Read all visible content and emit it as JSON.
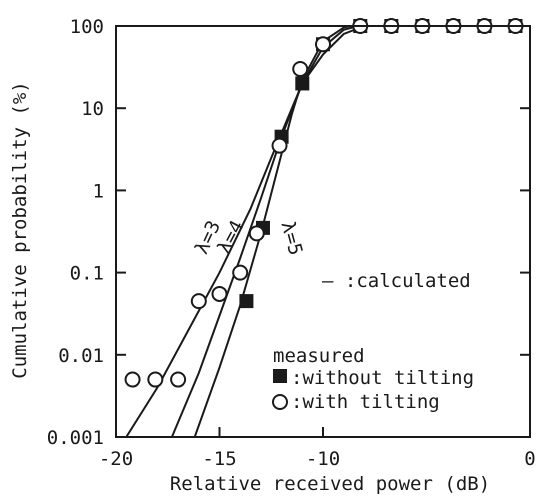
{
  "chart_data": {
    "type": "scatter",
    "xlabel": "Relative received power (dB)",
    "ylabel": "Cumulative probability (%)",
    "xlim": [
      -20,
      0
    ],
    "ylim": [
      0.001,
      100
    ],
    "yscale": "log",
    "grid": false,
    "x_ticks": [
      {
        "value": -20,
        "label": "-20"
      },
      {
        "value": -15,
        "label": "-15"
      },
      {
        "value": -10,
        "label": "-10"
      },
      {
        "value": 0,
        "label": "0"
      }
    ],
    "y_ticks": [
      {
        "value": 100,
        "label": "100"
      },
      {
        "value": 10,
        "label": "10"
      },
      {
        "value": 1,
        "label": "1"
      },
      {
        "value": 0.1,
        "label": "0.1"
      },
      {
        "value": 0.01,
        "label": "0.01"
      },
      {
        "value": 0.001,
        "label": "0.001"
      }
    ],
    "curves": [
      {
        "label": "λ=3",
        "points": [
          [
            -19.5,
            0.001
          ],
          [
            -18,
            0.004
          ],
          [
            -16.5,
            0.02
          ],
          [
            -15,
            0.1
          ],
          [
            -13.5,
            0.6
          ],
          [
            -12.5,
            2.5
          ],
          [
            -11.5,
            10
          ],
          [
            -11,
            20
          ],
          [
            -10,
            45
          ],
          [
            -9,
            80
          ],
          [
            -8,
            100
          ],
          [
            0,
            100
          ]
        ]
      },
      {
        "label": "λ=4",
        "points": [
          [
            -17.3,
            0.001
          ],
          [
            -16,
            0.006
          ],
          [
            -15,
            0.03
          ],
          [
            -14,
            0.15
          ],
          [
            -13,
            0.8
          ],
          [
            -12,
            4.5
          ],
          [
            -11,
            20
          ],
          [
            -10,
            55
          ],
          [
            -9,
            90
          ],
          [
            -8.3,
            100
          ],
          [
            0,
            100
          ]
        ]
      },
      {
        "label": "λ=5",
        "points": [
          [
            -16.2,
            0.001
          ],
          [
            -15,
            0.007
          ],
          [
            -14,
            0.04
          ],
          [
            -13,
            0.3
          ],
          [
            -12,
            2.8
          ],
          [
            -11.5,
            8.5
          ],
          [
            -11,
            22
          ],
          [
            -10,
            65
          ],
          [
            -9,
            96
          ],
          [
            -8.7,
            100
          ],
          [
            0,
            100
          ]
        ]
      }
    ],
    "series": [
      {
        "name": "without tilting",
        "marker": "filled-square",
        "points": [
          [
            -13.7,
            0.045
          ],
          [
            -12.9,
            0.35
          ],
          [
            -12,
            4.5
          ],
          [
            -11,
            20
          ],
          [
            -10,
            60
          ],
          [
            -8.2,
            100
          ],
          [
            -6.7,
            100
          ],
          [
            -5.2,
            100
          ],
          [
            -3.7,
            100
          ],
          [
            -2.2,
            100
          ],
          [
            -0.7,
            100
          ]
        ]
      },
      {
        "name": "with tilting",
        "marker": "open-circle",
        "points": [
          [
            -19.2,
            0.005
          ],
          [
            -18.1,
            0.005
          ],
          [
            -17,
            0.005
          ],
          [
            -16,
            0.045
          ],
          [
            -15,
            0.055
          ],
          [
            -14,
            0.1
          ],
          [
            -13.2,
            0.3
          ],
          [
            -12.1,
            3.5
          ],
          [
            -11.1,
            30
          ],
          [
            -10,
            60
          ],
          [
            -8.2,
            100
          ],
          [
            -6.7,
            100
          ],
          [
            -5.2,
            100
          ],
          [
            -3.7,
            100
          ],
          [
            -2.2,
            100
          ],
          [
            -0.7,
            100
          ]
        ]
      }
    ],
    "annotations": {
      "calculated": "– :calculated",
      "measured_title": "measured",
      "without_tilting": ":without tilting",
      "with_tilting": ":with tilting"
    }
  }
}
